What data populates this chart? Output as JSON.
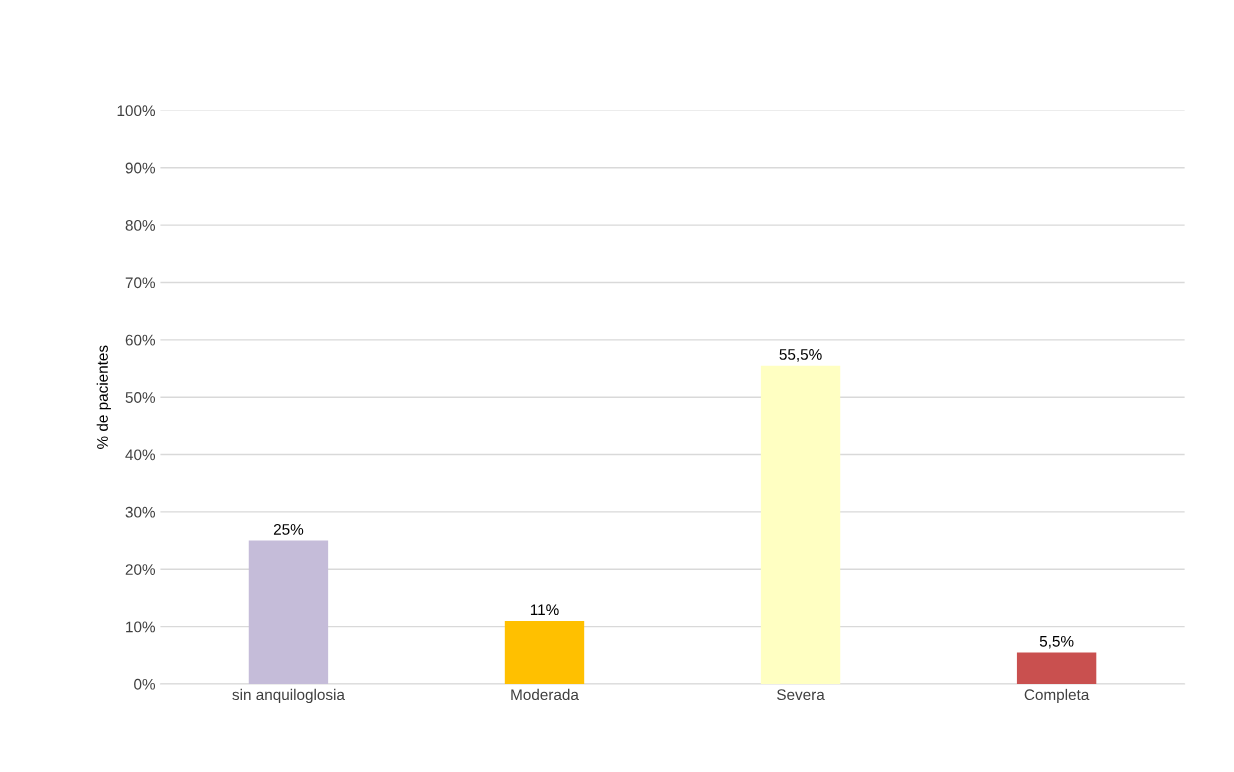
{
  "chart_data": {
    "type": "bar",
    "ylabel": "% de pacientes",
    "categories": [
      "sin anquiloglosia",
      "Moderada",
      "Severa",
      "Completa"
    ],
    "values": [
      25,
      11,
      55.5,
      5.5
    ],
    "value_labels": [
      "25%",
      "11%",
      "55,5%",
      "5,5%"
    ],
    "colors": [
      "#c5bcd9",
      "#ffc000",
      "#ffffc2",
      "#c9504f"
    ],
    "ylim": [
      0,
      100
    ],
    "yticks": [
      {
        "value": 0,
        "label": "0%"
      },
      {
        "value": 10,
        "label": "10%"
      },
      {
        "value": 20,
        "label": "20%"
      },
      {
        "value": 30,
        "label": "30%"
      },
      {
        "value": 40,
        "label": "40%"
      },
      {
        "value": 50,
        "label": "50%"
      },
      {
        "value": 60,
        "label": "60%"
      },
      {
        "value": 70,
        "label": "70%"
      },
      {
        "value": 80,
        "label": "80%"
      },
      {
        "value": 90,
        "label": "90%"
      },
      {
        "value": 100,
        "label": "100%"
      }
    ],
    "grid": "y",
    "legend": false
  }
}
